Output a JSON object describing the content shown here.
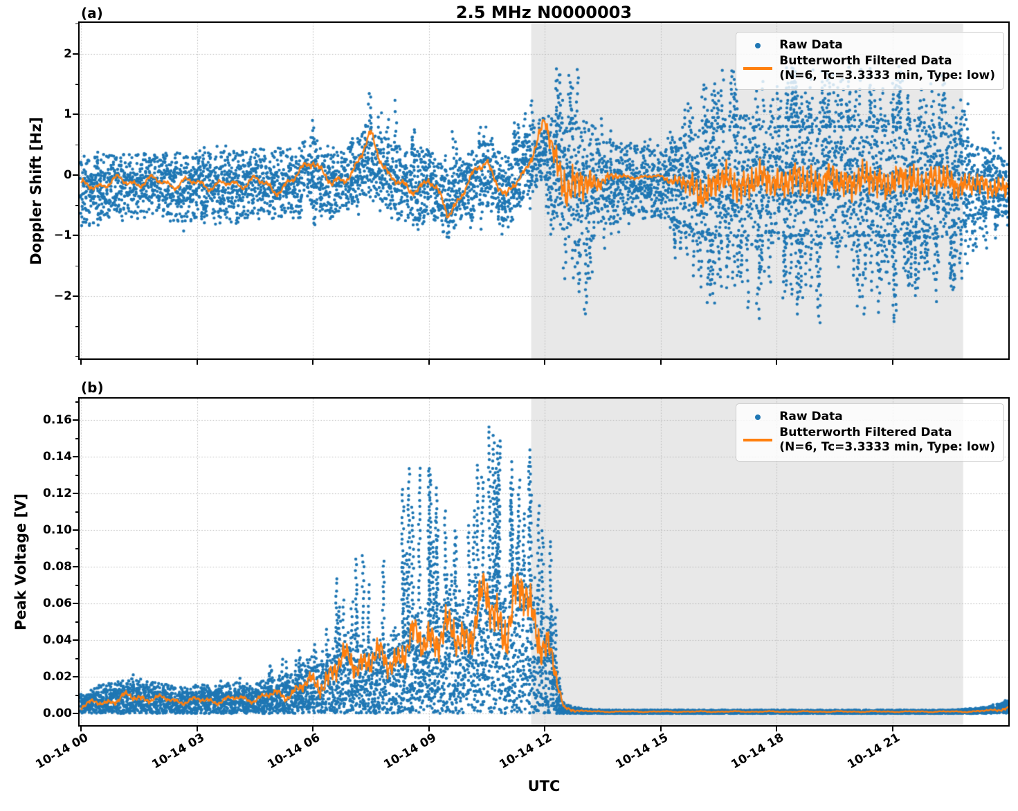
{
  "title": "2.5 MHz N0000003",
  "xlabel": "UTC",
  "legend": {
    "raw_label": "Raw Data",
    "filtered_label": "Butterworth Filtered Data",
    "filtered_sublabel": "(N=6, Tc=3.3333 min, Type: low)"
  },
  "colors": {
    "raw": "#1f77b4",
    "filtered": "#ff7f0e",
    "shade": "#e8e8e8",
    "grid": "#b8b8b8",
    "spine": "#000000"
  },
  "xticks": {
    "hours": [
      0,
      3,
      6,
      9,
      12,
      15,
      18,
      21
    ],
    "labels": [
      "10-14 00",
      "10-14 03",
      "10-14 06",
      "10-14 09",
      "10-14 12",
      "10-14 15",
      "10-14 18",
      "10-14 21"
    ]
  },
  "xlim": [
    -0.036,
    24.0
  ],
  "shaded_region_hours": [
    11.65,
    22.83
  ],
  "render": {
    "columns": 1700,
    "dot_radius": 2.2,
    "line_width": 2.3,
    "line_samples": 1500
  },
  "chart_data": [
    {
      "type": "scatter",
      "panel_label": "(a)",
      "ylabel": "Doppler Shift [Hz]",
      "series_names": [
        "Raw Data",
        "Butterworth Filtered Data"
      ],
      "yticks": [
        2,
        1,
        0,
        -1,
        -2
      ],
      "ytick_labels": [
        "2",
        "1",
        "0",
        "−1",
        "−2"
      ],
      "ytick_minor_step": 0.5,
      "ylim": [
        -3.03,
        2.514
      ],
      "band_mode": "centered",
      "x_step_hours": 0.5,
      "band_center": [
        -0.3,
        -0.2,
        -0.15,
        -0.2,
        -0.15,
        -0.2,
        -0.2,
        -0.15,
        -0.2,
        -0.1,
        -0.15,
        -0.1,
        0.05,
        -0.15,
        0.0,
        0.25,
        -0.05,
        -0.2,
        -0.1,
        -0.45,
        -0.15,
        0.05,
        -0.3,
        0.15,
        0.5,
        -0.15,
        -0.2,
        -0.1,
        -0.1,
        -0.1,
        -0.1,
        -0.15,
        -0.15,
        -0.1,
        -0.1,
        -0.1,
        -0.1,
        -0.1,
        -0.1,
        -0.1,
        -0.1,
        -0.1,
        -0.1,
        -0.1,
        -0.1,
        -0.1,
        -0.15,
        -0.1,
        -0.2
      ],
      "band_halfwidth": [
        0.55,
        0.5,
        0.45,
        0.5,
        0.45,
        0.55,
        0.5,
        0.5,
        0.55,
        0.5,
        0.55,
        0.5,
        0.55,
        0.5,
        0.5,
        0.6,
        0.55,
        0.6,
        0.5,
        0.55,
        0.5,
        0.55,
        0.55,
        0.55,
        0.5,
        1.0,
        1.1,
        0.7,
        0.6,
        0.55,
        0.55,
        0.7,
        0.9,
        1.0,
        1.0,
        1.0,
        1.0,
        1.0,
        1.0,
        1.0,
        1.0,
        1.0,
        1.0,
        0.95,
        0.9,
        0.85,
        0.6,
        0.5,
        0.45
      ],
      "outlier_max": [
        0.4,
        0.45,
        0.5,
        0.45,
        0.45,
        0.5,
        0.5,
        0.6,
        0.6,
        0.6,
        0.6,
        0.6,
        1.05,
        0.6,
        0.8,
        1.55,
        1.5,
        0.9,
        0.7,
        0.6,
        1.1,
        1.15,
        0.8,
        1.3,
        1.45,
        2.25,
        2.2,
        1.0,
        0.8,
        0.8,
        0.8,
        1.1,
        1.6,
        1.9,
        1.9,
        1.9,
        1.9,
        1.9,
        1.9,
        1.9,
        1.9,
        1.9,
        1.9,
        1.9,
        1.8,
        1.7,
        1.2,
        0.9,
        0.7
      ],
      "outlier_min": [
        -1.0,
        -0.9,
        -0.85,
        -0.9,
        -0.85,
        -1.0,
        -1.05,
        -0.9,
        -1.05,
        -0.85,
        -1.1,
        -0.9,
        -0.9,
        -0.9,
        -0.85,
        -0.7,
        -0.9,
        -1.15,
        -0.9,
        -1.1,
        -0.9,
        -0.9,
        -1.2,
        -0.7,
        -0.3,
        -2.3,
        -2.6,
        -1.6,
        -1.0,
        -0.9,
        -0.9,
        -1.6,
        -2.1,
        -2.3,
        -2.2,
        -2.5,
        -2.3,
        -2.4,
        -2.8,
        -2.3,
        -2.5,
        -2.4,
        -2.9,
        -2.4,
        -2.3,
        -2.2,
        -1.6,
        -1.2,
        -0.9
      ],
      "filtered": [
        -0.2,
        -0.15,
        -0.1,
        -0.12,
        -0.1,
        -0.15,
        -0.12,
        -0.18,
        -0.15,
        -0.08,
        -0.25,
        -0.1,
        0.3,
        -0.2,
        0.05,
        0.6,
        0.0,
        -0.3,
        -0.05,
        -0.65,
        -0.15,
        0.25,
        -0.4,
        0.1,
        0.85,
        -0.15,
        -0.2,
        -0.05,
        -0.03,
        -0.03,
        -0.03,
        -0.1,
        -0.3,
        -0.1,
        -0.15,
        -0.1,
        -0.1,
        -0.1,
        -0.1,
        -0.1,
        -0.1,
        -0.1,
        -0.1,
        -0.1,
        -0.1,
        -0.1,
        -0.2,
        -0.15,
        -0.25
      ],
      "filtered_amp_slow": [
        0.1,
        0.1,
        0.1,
        0.1,
        0.1,
        0.1,
        0.1,
        0.1,
        0.1,
        0.1,
        0.1,
        0.1,
        0.12,
        0.1,
        0.1,
        0.15,
        0.1,
        0.1,
        0.1,
        0.12,
        0.1,
        0.1,
        0.1,
        0.1,
        0.1,
        0.15,
        0.15,
        0.08,
        0.03,
        0.03,
        0.03,
        0.08,
        0.12,
        0.12,
        0.12,
        0.12,
        0.12,
        0.12,
        0.12,
        0.12,
        0.12,
        0.12,
        0.12,
        0.12,
        0.12,
        0.12,
        0.1,
        0.1,
        0.1
      ],
      "filtered_amp_fast": [
        0.04,
        0.03,
        0.03,
        0.03,
        0.03,
        0.03,
        0.03,
        0.03,
        0.03,
        0.03,
        0.04,
        0.03,
        0.05,
        0.04,
        0.04,
        0.06,
        0.04,
        0.05,
        0.04,
        0.05,
        0.04,
        0.05,
        0.05,
        0.04,
        0.1,
        0.35,
        0.3,
        0.1,
        0.03,
        0.02,
        0.02,
        0.1,
        0.3,
        0.28,
        0.28,
        0.28,
        0.28,
        0.28,
        0.28,
        0.28,
        0.28,
        0.28,
        0.28,
        0.28,
        0.28,
        0.26,
        0.2,
        0.18,
        0.18
      ]
    },
    {
      "type": "scatter",
      "panel_label": "(b)",
      "ylabel": "Peak Voltage [V]",
      "series_names": [
        "Raw Data",
        "Butterworth Filtered Data"
      ],
      "yticks": [
        0.16,
        0.14,
        0.12,
        0.1,
        0.08,
        0.06,
        0.04,
        0.02,
        0.0
      ],
      "ytick_labels": [
        "0.16",
        "0.14",
        "0.12",
        "0.10",
        "0.08",
        "0.06",
        "0.04",
        "0.02",
        "0.00"
      ],
      "ytick_minor_step": 0.01,
      "ylim": [
        -0.0064,
        0.1717
      ],
      "band_mode": "baseline",
      "clamp_min": 0.0005,
      "x_step_hours": 0.5,
      "band_top": [
        0.008,
        0.012,
        0.014,
        0.015,
        0.013,
        0.011,
        0.012,
        0.012,
        0.013,
        0.013,
        0.015,
        0.018,
        0.025,
        0.03,
        0.035,
        0.032,
        0.035,
        0.04,
        0.045,
        0.05,
        0.055,
        0.06,
        0.06,
        0.065,
        0.05,
        0.004,
        0.002,
        0.0015,
        0.0015,
        0.0015,
        0.0015,
        0.0015,
        0.0015,
        0.0015,
        0.0015,
        0.0015,
        0.0015,
        0.0015,
        0.0015,
        0.0015,
        0.0015,
        0.0015,
        0.0015,
        0.0015,
        0.0015,
        0.0015,
        0.002,
        0.003,
        0.006
      ],
      "spike_top": [
        0.012,
        0.018,
        0.022,
        0.025,
        0.022,
        0.018,
        0.022,
        0.02,
        0.024,
        0.022,
        0.028,
        0.035,
        0.048,
        0.093,
        0.08,
        0.123,
        0.09,
        0.146,
        0.138,
        0.122,
        0.118,
        0.163,
        0.147,
        0.158,
        0.135,
        0.008,
        0.003,
        0.002,
        0.002,
        0.002,
        0.002,
        0.002,
        0.002,
        0.002,
        0.002,
        0.002,
        0.002,
        0.002,
        0.002,
        0.002,
        0.002,
        0.002,
        0.002,
        0.002,
        0.002,
        0.002,
        0.003,
        0.004,
        0.008
      ],
      "filtered": [
        0.004,
        0.006,
        0.008,
        0.009,
        0.008,
        0.007,
        0.007,
        0.007,
        0.008,
        0.008,
        0.01,
        0.012,
        0.016,
        0.022,
        0.03,
        0.028,
        0.03,
        0.035,
        0.045,
        0.04,
        0.045,
        0.06,
        0.05,
        0.065,
        0.04,
        0.003,
        0.0012,
        0.001,
        0.001,
        0.001,
        0.001,
        0.001,
        0.001,
        0.001,
        0.001,
        0.001,
        0.001,
        0.001,
        0.001,
        0.001,
        0.001,
        0.001,
        0.001,
        0.001,
        0.001,
        0.001,
        0.001,
        0.0015,
        0.003
      ],
      "filtered_amp_slow": [
        0.002,
        0.002,
        0.003,
        0.003,
        0.002,
        0.002,
        0.002,
        0.002,
        0.002,
        0.002,
        0.003,
        0.004,
        0.006,
        0.008,
        0.008,
        0.008,
        0.008,
        0.01,
        0.012,
        0.012,
        0.012,
        0.015,
        0.015,
        0.015,
        0.012,
        0.001,
        0.0004,
        0.0003,
        0.0003,
        0.0003,
        0.0003,
        0.0003,
        0.0003,
        0.0003,
        0.0003,
        0.0003,
        0.0003,
        0.0003,
        0.0003,
        0.0003,
        0.0003,
        0.0003,
        0.0003,
        0.0003,
        0.0003,
        0.0003,
        0.0003,
        0.0005,
        0.001
      ],
      "filtered_amp_fast": [
        0.001,
        0.001,
        0.0015,
        0.0015,
        0.001,
        0.001,
        0.001,
        0.001,
        0.001,
        0.001,
        0.0015,
        0.002,
        0.004,
        0.006,
        0.006,
        0.007,
        0.006,
        0.008,
        0.009,
        0.009,
        0.009,
        0.012,
        0.012,
        0.012,
        0.01,
        0.001,
        0.0003,
        0.0002,
        0.0002,
        0.0002,
        0.0002,
        0.0002,
        0.0002,
        0.0002,
        0.0002,
        0.0002,
        0.0002,
        0.0002,
        0.0002,
        0.0002,
        0.0002,
        0.0002,
        0.0002,
        0.0002,
        0.0002,
        0.0002,
        0.0003,
        0.0004,
        0.0008
      ]
    }
  ]
}
